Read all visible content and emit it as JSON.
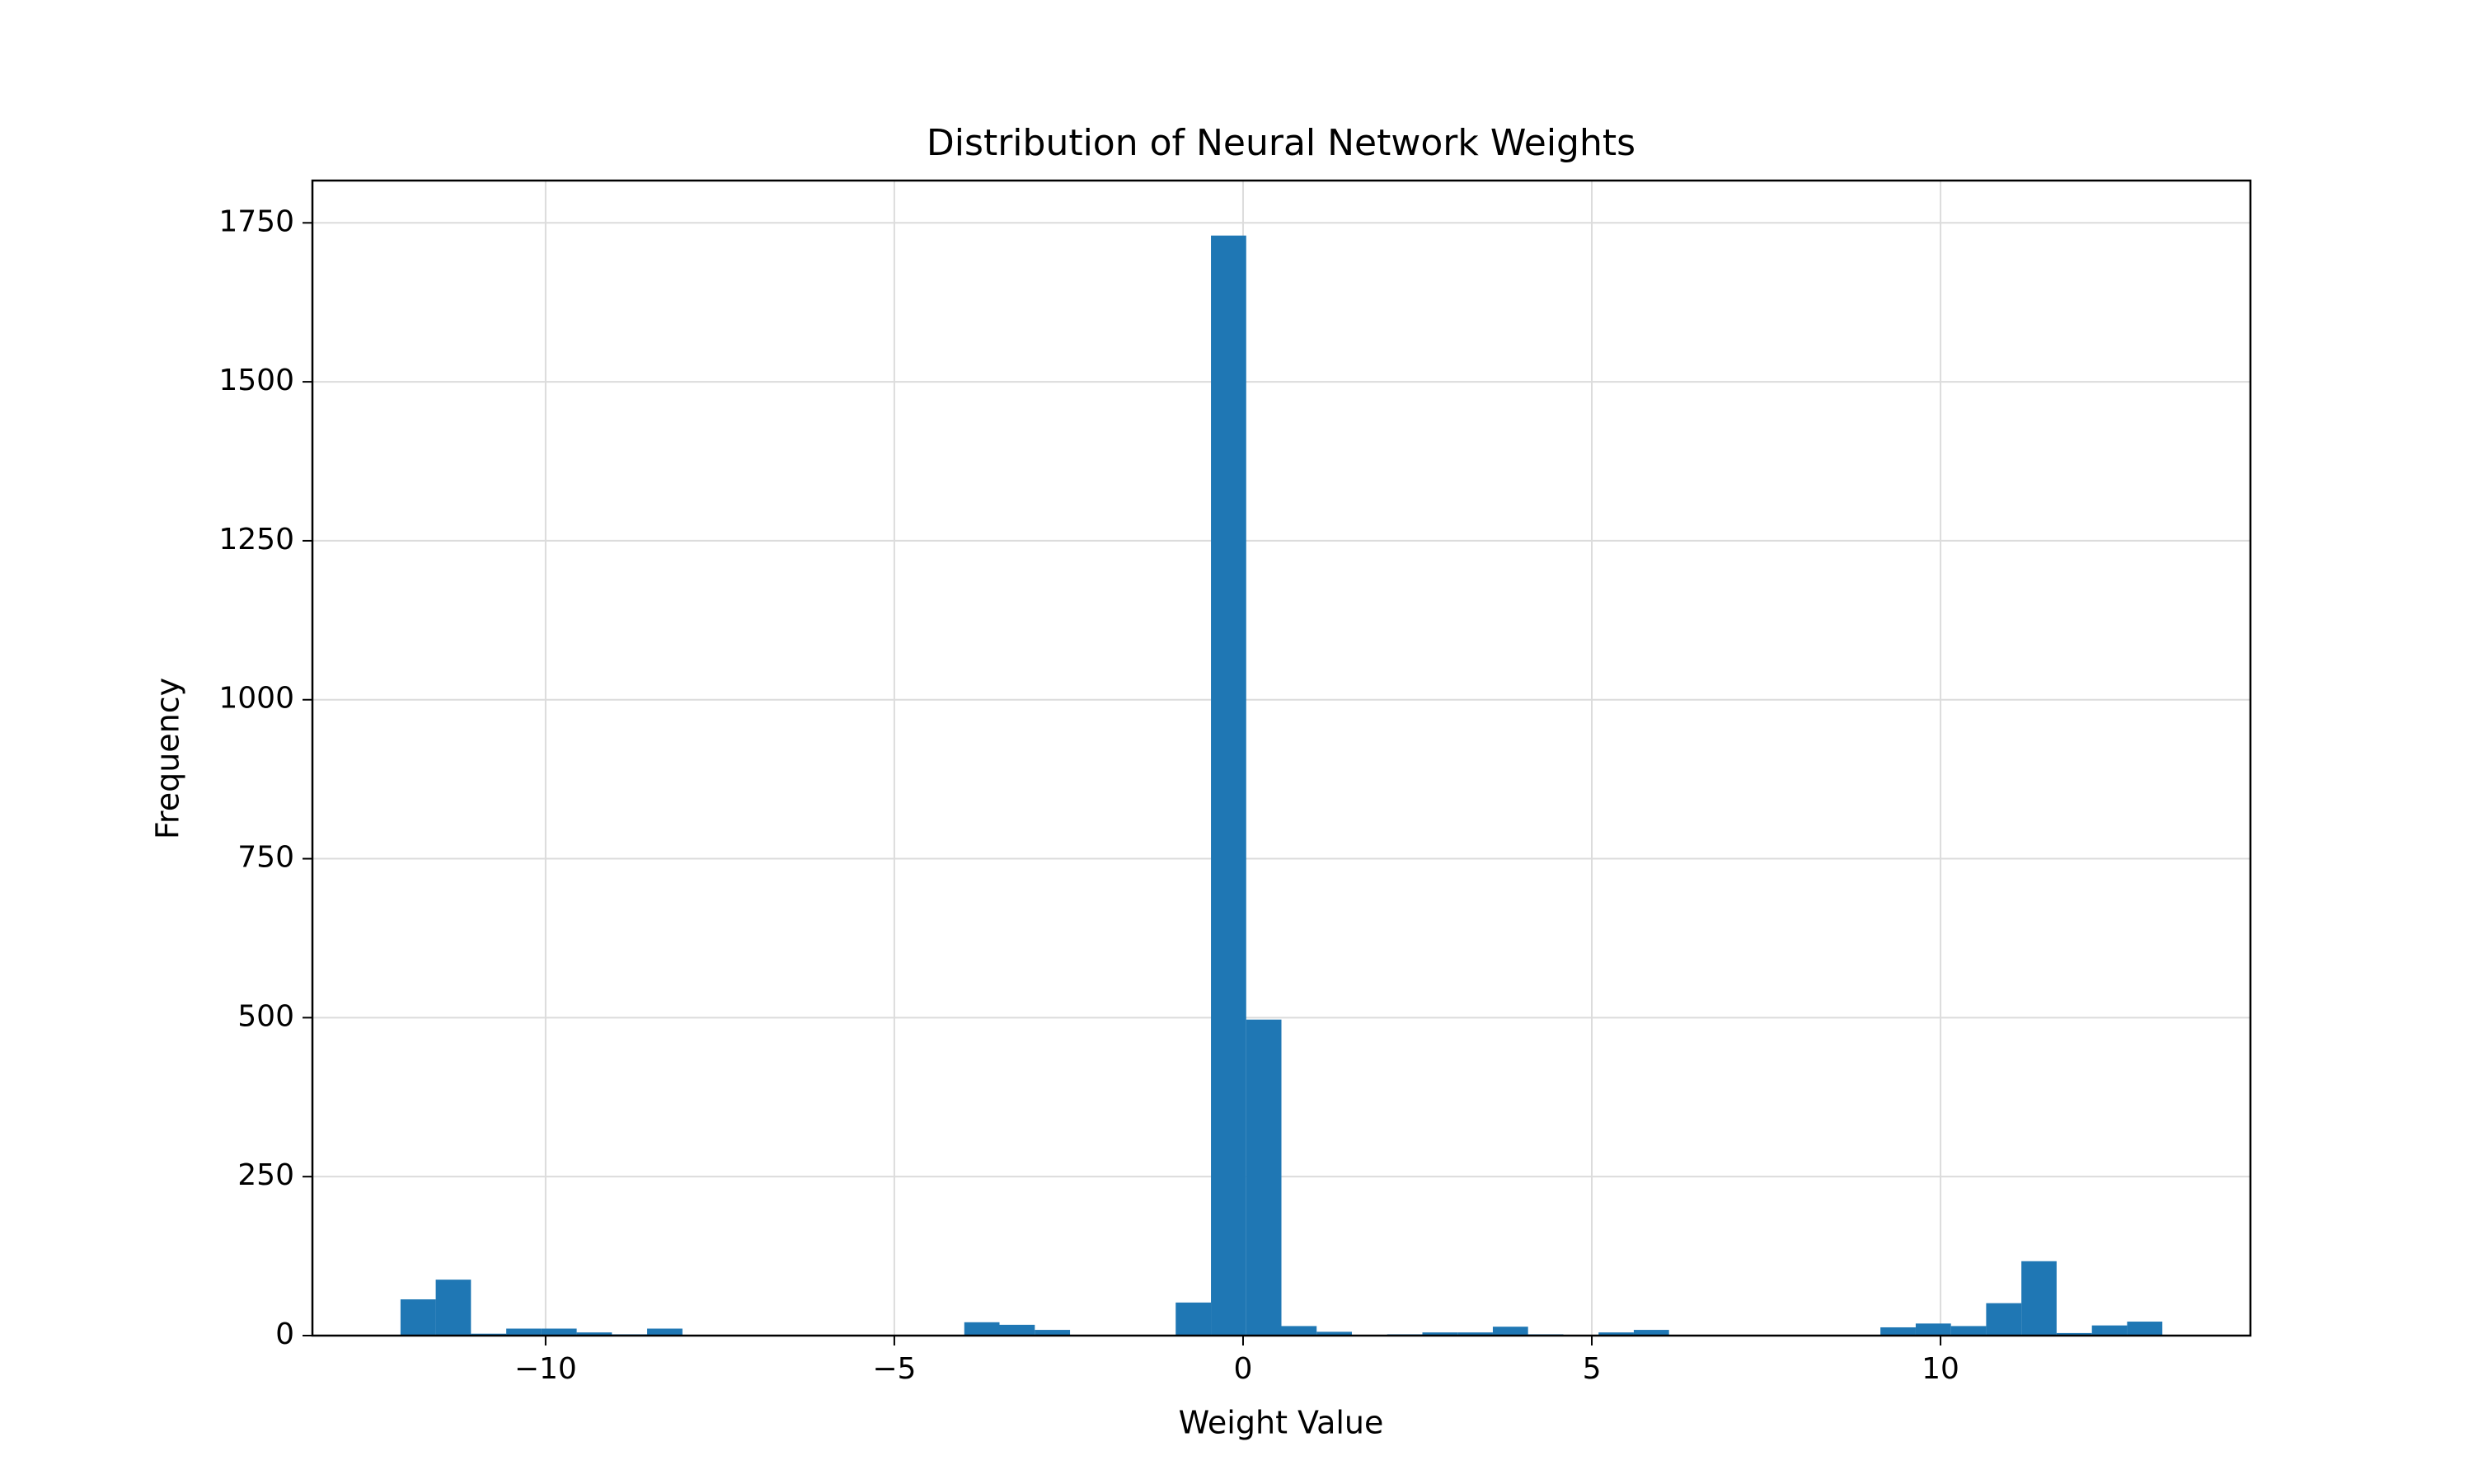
{
  "chart_data": {
    "type": "histogram",
    "title": "Distribution of Neural Network Weights",
    "x_label": "Weight Value",
    "y_label": "Frequency",
    "color": "#1f77b4",
    "grid": true,
    "bins": [
      -12.08,
      -11.575,
      -11.07,
      -10.564,
      -10.059,
      -9.554,
      -9.049,
      -8.544,
      -8.038,
      -7.533,
      -7.028,
      -6.523,
      -6.018,
      -5.512,
      -5.007,
      -4.502,
      -3.997,
      -3.492,
      -2.986,
      -2.481,
      -1.976,
      -1.471,
      -0.966,
      -0.46,
      0.045,
      0.55,
      1.055,
      1.56,
      2.066,
      2.571,
      3.076,
      3.581,
      4.086,
      4.592,
      5.097,
      5.602,
      6.107,
      6.612,
      7.118,
      7.623,
      8.128,
      8.633,
      9.138,
      9.644,
      10.149,
      10.654,
      11.159,
      11.664,
      12.17,
      12.675,
      13.18
    ],
    "values": [
      57,
      88,
      3,
      11,
      11,
      5,
      2,
      11,
      0,
      0,
      0,
      0,
      0,
      0,
      0,
      0,
      21,
      17,
      9,
      0,
      0,
      0,
      52,
      1730,
      497,
      15,
      6,
      1,
      2,
      5,
      5,
      14,
      2,
      1,
      5,
      9,
      0,
      0,
      0,
      0,
      0,
      0,
      13,
      19,
      15,
      51,
      117,
      4,
      16,
      22
    ],
    "xlim": [
      -13.343,
      14.443
    ],
    "ylim": [
      0,
      1816.5
    ],
    "xticks": [
      {
        "value": -10,
        "label": "−10"
      },
      {
        "value": -5,
        "label": "−5"
      },
      0,
      5,
      10
    ],
    "yticks": [
      0,
      250,
      500,
      750,
      1000,
      1250,
      1500,
      1750
    ]
  }
}
